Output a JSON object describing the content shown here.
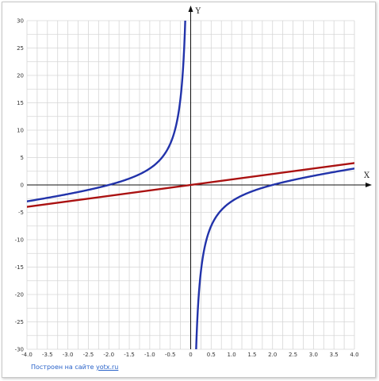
{
  "chart_data": {
    "type": "line",
    "xlabel": "X",
    "ylabel": "Y",
    "xlim": [
      -4.0,
      4.0
    ],
    "ylim": [
      -30,
      30
    ],
    "grid": true,
    "x_ticks": [
      "-4.0",
      "-3.5",
      "-3.0",
      "-2.5",
      "-2.0",
      "-1.5",
      "-1.0",
      "-0.5",
      "0",
      "0.5",
      "1.0",
      "1.5",
      "2.0",
      "2.5",
      "3.0",
      "3.5",
      "4.0"
    ],
    "y_ticks": [
      "30",
      "25",
      "20",
      "15",
      "10",
      "5",
      "0",
      "-5",
      "-10",
      "-15",
      "-20",
      "-25",
      "-30"
    ],
    "series": [
      {
        "color": "#2233aa",
        "description_points": [
          [
            -4.0,
            -3.0
          ],
          [
            -3.0,
            -1.667
          ],
          [
            -2.0,
            0
          ],
          [
            -1.5,
            1.167
          ],
          [
            -1.0,
            3.0
          ],
          [
            -0.5,
            7.5
          ],
          [
            -0.2,
            19.8
          ],
          [
            -0.133,
            30
          ],
          [
            0.133,
            -30
          ],
          [
            0.2,
            -19.8
          ],
          [
            0.5,
            -7.5
          ],
          [
            1.0,
            -3.0
          ],
          [
            1.5,
            -1.167
          ],
          [
            2.0,
            0
          ],
          [
            3.0,
            1.667
          ],
          [
            4.0,
            3.0
          ]
        ]
      },
      {
        "color": "#aa1111",
        "description_points": [
          [
            -4.0,
            -4.0
          ],
          [
            0,
            0
          ],
          [
            4.0,
            4.0
          ]
        ]
      }
    ]
  },
  "footer": {
    "prefix": "Построен на сайте",
    "link": "yotx.ru"
  }
}
